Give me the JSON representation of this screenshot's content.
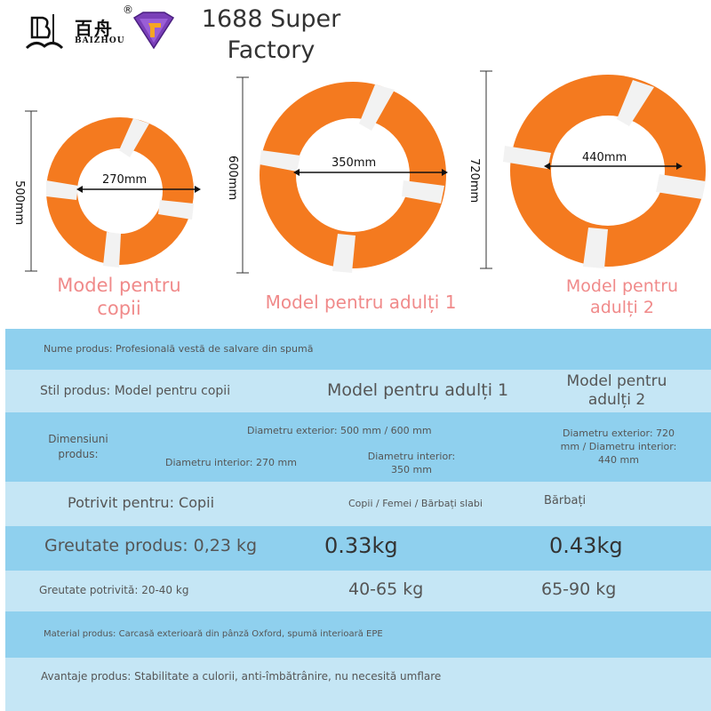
{
  "header": {
    "brand_cn": "百舟",
    "brand_en": "BAIZHOU",
    "registered": "®",
    "factory": "1688 Super Factory",
    "logo_icon": "baizhou-logo-icon",
    "badge_icon": "super-factory-gem-icon"
  },
  "products": [
    {
      "height": "500mm",
      "inner": "270mm",
      "caption": "Model pentru copii"
    },
    {
      "height": "600mm",
      "inner": "350mm",
      "caption": "Model pentru adulți 1"
    },
    {
      "height": "720mm",
      "inner": "440mm",
      "caption": "Model pentru adulți 2"
    }
  ],
  "table": {
    "name": "Nume produs: Profesională vestă de salvare din spumă",
    "style_label": "Stil produs: Model pentru copii",
    "style_adult1": "Model pentru adulți 1",
    "style_adult2": "Model pentru adulți 2",
    "dims_label": "Dimensiuni produs:",
    "dims_outer": "Diametru exterior: 500 mm / 600 mm",
    "dims_inner_child": "Diametru interior: 270 mm",
    "dims_inner_adult1": "Diametru interior: 350 mm",
    "dims_adult2": "Diametru exterior: 720 mm / Diametru interior: 440 mm",
    "suit_label": "Potrivit pentru: Copii",
    "suit_adult1": "Copii / Femei / Bărbați slabi",
    "suit_adult2": "Bărbați",
    "weight_label": "Greutate produs: 0,23 kg",
    "weight_adult1": "0.33kg",
    "weight_adult2": "0.43kg",
    "load_label": "Greutate potrivită: 20-40 kg",
    "load_adult1": "40-65 kg",
    "load_adult2": "65-90 kg",
    "material": "Material produs: Carcasă exterioară din pânză Oxford, spumă interioară EPE",
    "advantages": "Avantaje produs: Stabilitate a culorii, anti-îmbătrânire, nu necesită umflare"
  },
  "colors": {
    "ring_orange": "#f47a1f",
    "ring_tape": "#f2f2f2",
    "row_dark": "#8fd0ee",
    "row_light": "#c5e6f5",
    "caption_pink": "#f08a8a"
  }
}
